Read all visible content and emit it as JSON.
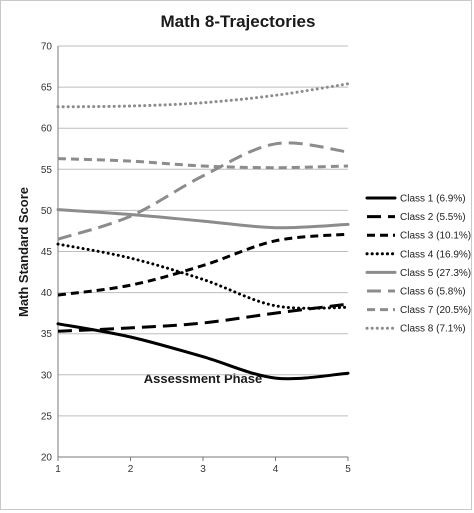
{
  "chart_data": {
    "type": "line",
    "title": "Math 8-Trajectories",
    "xlabel": "Assessment Phase",
    "ylabel": "Math  Standard Score",
    "x": [
      1,
      2,
      3,
      4,
      5
    ],
    "xticks": [
      "1",
      "2",
      "3",
      "4",
      "5"
    ],
    "yticks": [
      "20",
      "25",
      "30",
      "35",
      "40",
      "45",
      "50",
      "55",
      "60",
      "65",
      "70"
    ],
    "ylim": [
      20,
      70
    ],
    "grid": "horizontal",
    "legend_position": "right",
    "series": [
      {
        "name": "Class 1 (6.9%)",
        "values": [
          36.2,
          34.6,
          32.2,
          29.6,
          30.2
        ],
        "color": "#000000",
        "style": "solid"
      },
      {
        "name": "Class 2 (5.5%)",
        "values": [
          35.3,
          35.7,
          36.3,
          37.5,
          38.6
        ],
        "color": "#000000",
        "style": "long-dash"
      },
      {
        "name": "Class 3 (10.1%)",
        "values": [
          39.7,
          40.9,
          43.3,
          46.3,
          47.1
        ],
        "color": "#000000",
        "style": "dash"
      },
      {
        "name": "Class 4 (16.9%)",
        "values": [
          45.9,
          44.2,
          41.6,
          38.4,
          38.2
        ],
        "color": "#000000",
        "style": "dot"
      },
      {
        "name": "Class 5 (27.3%)",
        "values": [
          50.1,
          49.5,
          48.7,
          47.9,
          48.3
        ],
        "color": "#8c8c8c",
        "style": "solid"
      },
      {
        "name": "Class 6 (5.8%)",
        "values": [
          46.5,
          49.3,
          54.2,
          58.1,
          57.1
        ],
        "color": "#8c8c8c",
        "style": "long-dash"
      },
      {
        "name": "Class 7 (20.5%)",
        "values": [
          56.3,
          56.0,
          55.4,
          55.2,
          55.4
        ],
        "color": "#8c8c8c",
        "style": "dash"
      },
      {
        "name": "Class 8 (7.1%)",
        "values": [
          62.6,
          62.7,
          63.1,
          64.0,
          65.4
        ],
        "color": "#8c8c8c",
        "style": "dot"
      }
    ]
  }
}
